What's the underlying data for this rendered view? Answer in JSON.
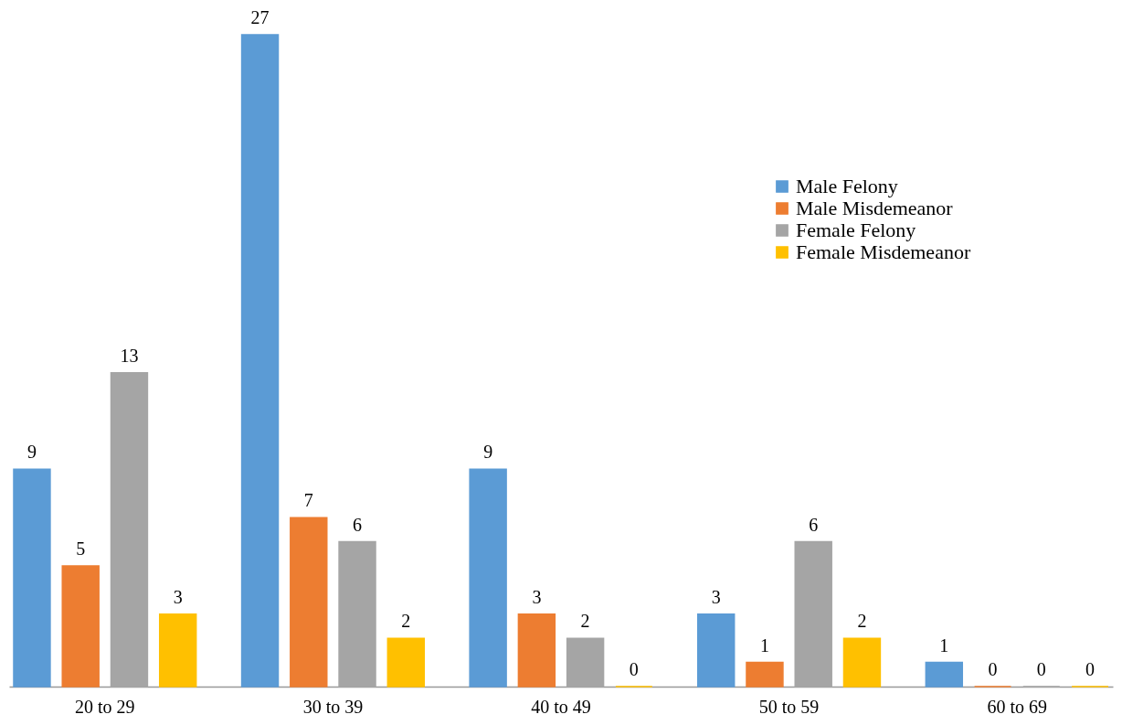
{
  "chart_data": {
    "type": "bar",
    "categories": [
      "20 to 29",
      "30 to 39",
      "40 to 49",
      "50 to 59",
      "60 to 69"
    ],
    "series": [
      {
        "name": "Male Felony",
        "color": "#5b9bd5",
        "values": [
          9,
          27,
          9,
          3,
          1
        ]
      },
      {
        "name": "Male Misdemeanor",
        "color": "#ed7d31",
        "values": [
          5,
          7,
          3,
          1,
          0
        ]
      },
      {
        "name": "Female Felony",
        "color": "#a5a5a5",
        "values": [
          13,
          6,
          2,
          6,
          0
        ]
      },
      {
        "name": "Female Misdemeanor",
        "color": "#ffc000",
        "values": [
          3,
          2,
          0,
          2,
          0
        ]
      }
    ],
    "data_labels": true,
    "legend": "top right",
    "grid": false
  }
}
